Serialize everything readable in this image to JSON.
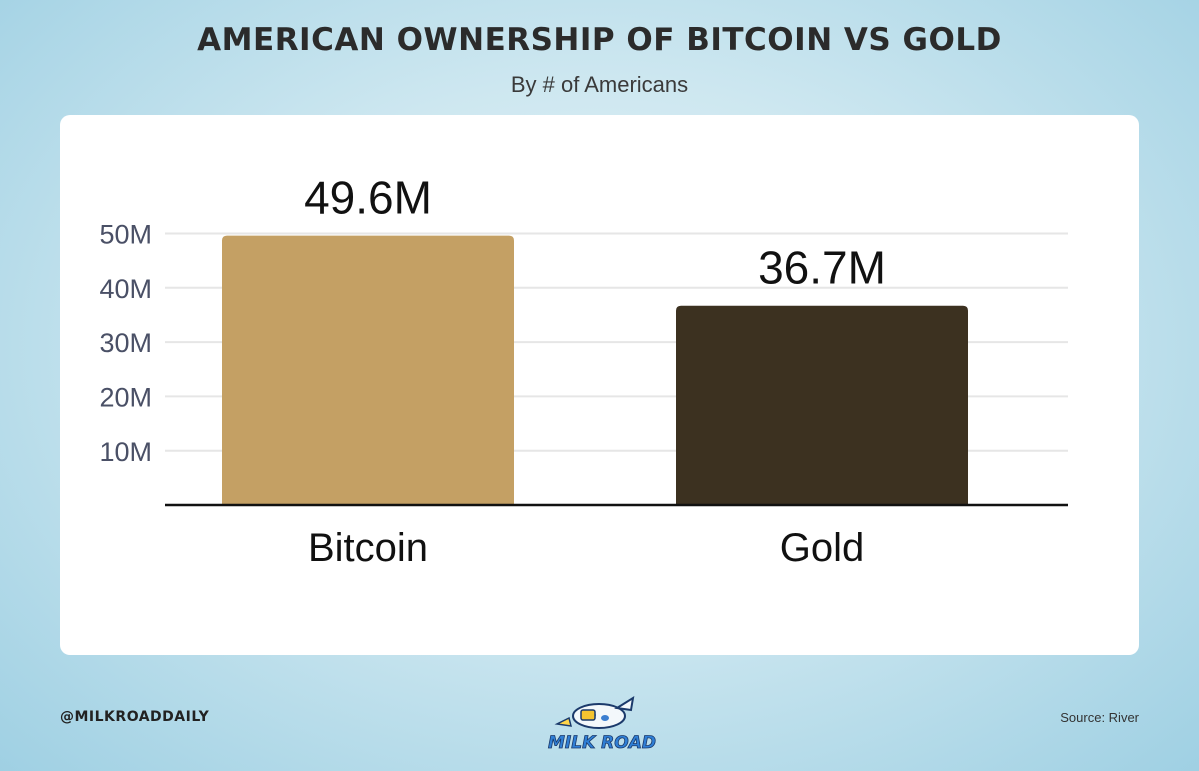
{
  "header": {
    "title": "AMERICAN OWNERSHIP OF BITCOIN VS GOLD",
    "subtitle": "By # of Americans"
  },
  "footer": {
    "handle": "@MILKROADDAILY",
    "source": "Source: River",
    "logo_text": "MILK ROAD"
  },
  "colors": {
    "bitcoin": "#c4a064",
    "gold": "#3c3120",
    "gridline": "#e6e6e6",
    "axis": "#111111",
    "tick_label": "#4a5066"
  },
  "chart_data": {
    "type": "bar",
    "title": "AMERICAN OWNERSHIP OF BITCOIN VS GOLD",
    "subtitle": "By # of Americans",
    "categories": [
      "Bitcoin",
      "Gold"
    ],
    "values": [
      49.6,
      36.7
    ],
    "data_labels": [
      "49.6M",
      "36.7M"
    ],
    "yticks": [
      10,
      20,
      30,
      40,
      50
    ],
    "ytick_labels": [
      "10M",
      "20M",
      "30M",
      "40M",
      "50M"
    ],
    "ylim": [
      0,
      50
    ],
    "grid": true,
    "legend": "none"
  }
}
